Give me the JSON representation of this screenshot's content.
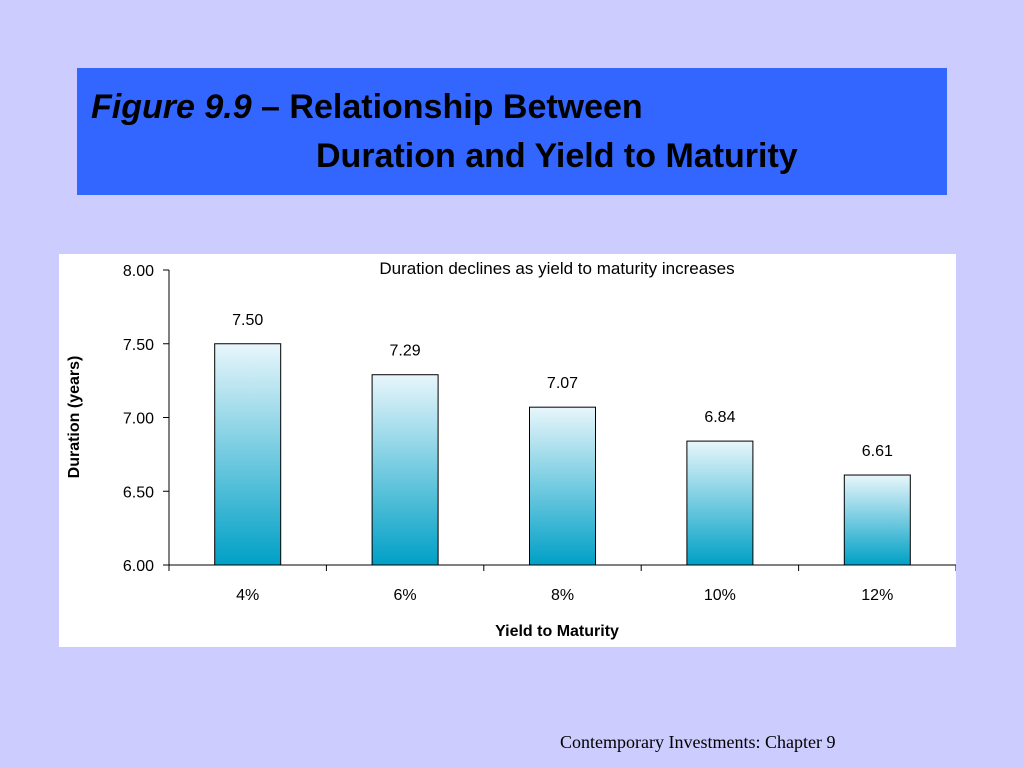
{
  "slide": {
    "title_figure": "Figure 9.9",
    "title_dash": " – ",
    "title_line1": "Relationship Between",
    "title_line2": "Duration and Yield to Maturity",
    "footer": "Contemporary Investments: Chapter 9"
  },
  "chart_data": {
    "type": "bar",
    "title": "Duration declines as yield to maturity increases",
    "xlabel": "Yield to Maturity",
    "ylabel": "Duration (years)",
    "categories": [
      "4%",
      "6%",
      "8%",
      "10%",
      "12%"
    ],
    "values": [
      7.5,
      7.29,
      7.07,
      6.84,
      6.61
    ],
    "value_labels": [
      "7.50",
      "7.29",
      "7.07",
      "6.84",
      "6.61"
    ],
    "ylim": [
      6.0,
      8.0
    ],
    "yticks": [
      6.0,
      6.5,
      7.0,
      7.5,
      8.0
    ],
    "ytick_labels": [
      "6.00",
      "6.50",
      "7.00",
      "7.50",
      "8.00"
    ],
    "grid": false,
    "bar_color_top": "#e8f6fb",
    "bar_color_bottom": "#00a0c6"
  }
}
